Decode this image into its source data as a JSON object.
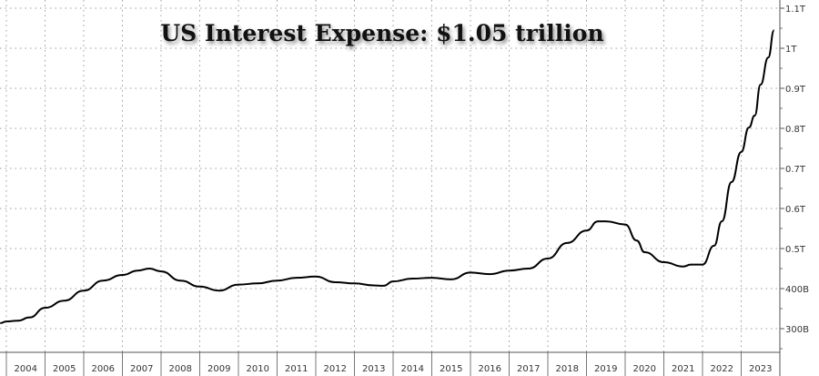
{
  "chart_data": {
    "type": "line",
    "title": "US Interest Expense: $1.05 trillion",
    "xlabel": "",
    "ylabel": "",
    "xlim": [
      2004,
      2024
    ],
    "ylim": [
      0.255,
      1.1
    ],
    "grid": true,
    "x_tick_labels": [
      "2004",
      "2005",
      "2006",
      "2007",
      "2008",
      "2009",
      "2010",
      "2011",
      "2012",
      "2013",
      "2014",
      "2015",
      "2016",
      "2017",
      "2018",
      "2019",
      "2020",
      "2021",
      "2022",
      "2023"
    ],
    "y_ticks": [
      {
        "value": 1.1,
        "label": "1.1T"
      },
      {
        "value": 1.0,
        "label": "1T"
      },
      {
        "value": 0.9,
        "label": "0.9T"
      },
      {
        "value": 0.8,
        "label": "0.8T"
      },
      {
        "value": 0.7,
        "label": "0.7T"
      },
      {
        "value": 0.6,
        "label": "0.6T"
      },
      {
        "value": 0.5,
        "label": "0.5T"
      },
      {
        "value": 0.4,
        "label": "400B"
      },
      {
        "value": 0.3,
        "label": "300B"
      }
    ],
    "series": [
      {
        "name": "US Interest Expense (trillions USD)",
        "color": "#000000",
        "x": [
          2003.84,
          2004.0,
          2004.3,
          2004.6,
          2005.0,
          2005.5,
          2006.0,
          2006.5,
          2007.0,
          2007.4,
          2007.7,
          2008.0,
          2008.5,
          2009.0,
          2009.5,
          2010.0,
          2010.5,
          2011.0,
          2011.5,
          2012.0,
          2012.5,
          2013.0,
          2013.5,
          2013.75,
          2014.0,
          2014.5,
          2015.0,
          2015.5,
          2016.0,
          2016.5,
          2017.0,
          2017.5,
          2018.0,
          2018.5,
          2019.0,
          2019.3,
          2019.5,
          2020.0,
          2020.3,
          2020.5,
          2021.0,
          2021.5,
          2021.7,
          2022.0,
          2022.3,
          2022.5,
          2022.75,
          2023.0,
          2023.2,
          2023.35,
          2023.5,
          2023.7,
          2023.85
        ],
        "y": [
          0.314,
          0.318,
          0.32,
          0.328,
          0.352,
          0.37,
          0.395,
          0.42,
          0.434,
          0.445,
          0.45,
          0.443,
          0.42,
          0.405,
          0.395,
          0.41,
          0.413,
          0.42,
          0.427,
          0.43,
          0.416,
          0.413,
          0.408,
          0.407,
          0.418,
          0.425,
          0.427,
          0.423,
          0.44,
          0.436,
          0.445,
          0.45,
          0.475,
          0.514,
          0.545,
          0.568,
          0.568,
          0.56,
          0.52,
          0.491,
          0.466,
          0.455,
          0.46,
          0.46,
          0.507,
          0.568,
          0.666,
          0.741,
          0.802,
          0.832,
          0.909,
          0.977,
          1.045
        ]
      }
    ]
  }
}
